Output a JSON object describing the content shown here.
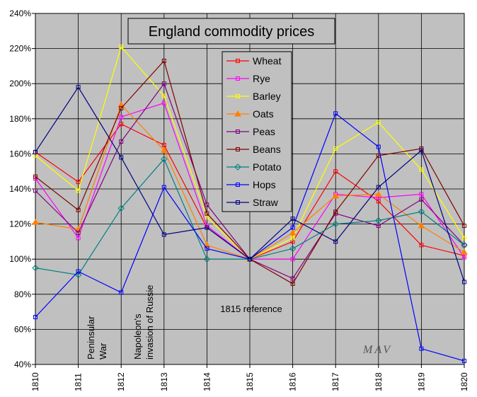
{
  "chart_data": {
    "type": "line",
    "title": "England commodity prices",
    "x": [
      "1810",
      "1811",
      "1812",
      "1813",
      "1814",
      "1815",
      "1816",
      "1817",
      "1818",
      "1819",
      "1820"
    ],
    "ylim": [
      40,
      240
    ],
    "yticks": [
      "40%",
      "60%",
      "80%",
      "100%",
      "120%",
      "140%",
      "160%",
      "180%",
      "200%",
      "220%",
      "240%"
    ],
    "grid": true,
    "legend_position": "top-center",
    "series": [
      {
        "name": "Wheat",
        "color": "#ff0000",
        "marker": "square",
        "values": [
          161,
          144,
          177,
          165,
          118,
          100,
          110,
          150,
          133,
          108,
          102
        ]
      },
      {
        "name": "Rye",
        "color": "#ff00ff",
        "marker": "square",
        "values": [
          146,
          112,
          181,
          189,
          119,
          100,
          100,
          137,
          135,
          137,
          101
        ]
      },
      {
        "name": "Barley",
        "color": "#ffff00",
        "marker": "square",
        "values": [
          159,
          139,
          221,
          193,
          124,
          100,
          112,
          163,
          178,
          151,
          112
        ]
      },
      {
        "name": "Oats",
        "color": "#ff8000",
        "marker": "triangle",
        "values": [
          121,
          117,
          188,
          162,
          108,
          100,
          115,
          136,
          137,
          119,
          104
        ]
      },
      {
        "name": "Peas",
        "color": "#800080",
        "marker": "square",
        "values": [
          139,
          115,
          167,
          200,
          131,
          100,
          89,
          126,
          119,
          134,
          108
        ]
      },
      {
        "name": "Beans",
        "color": "#800000",
        "marker": "square",
        "values": [
          147,
          128,
          186,
          213,
          126,
          100,
          86,
          127,
          159,
          163,
          119
        ]
      },
      {
        "name": "Potato",
        "color": "#008080",
        "marker": "diamond",
        "values": [
          95,
          91,
          129,
          157,
          100,
          100,
          106,
          120,
          122,
          127,
          108
        ]
      },
      {
        "name": "Hops",
        "color": "#0000ff",
        "marker": "square",
        "values": [
          67,
          93,
          81,
          141,
          106,
          100,
          118,
          183,
          164,
          49,
          42
        ]
      },
      {
        "name": "Straw",
        "color": "#000080",
        "marker": "square",
        "values": [
          161,
          198,
          158,
          114,
          118,
          100,
          123,
          110,
          141,
          162,
          87
        ]
      }
    ],
    "annotations": [
      {
        "id": "peninsular",
        "lines": [
          "Peninsular",
          "War"
        ]
      },
      {
        "id": "napoleon",
        "lines": [
          "Napoleon's",
          "invasion of Russie"
        ]
      },
      {
        "id": "reference",
        "lines": [
          "1815 reference"
        ]
      }
    ],
    "signature": "MAV"
  }
}
